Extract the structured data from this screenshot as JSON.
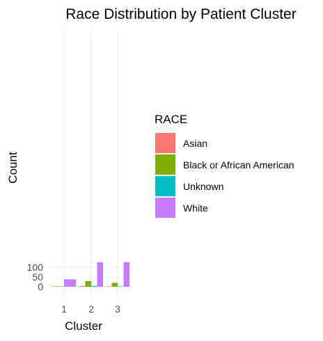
{
  "chart_data": {
    "type": "bar",
    "title": "Race Distribution by Patient Cluster",
    "xlabel": "Cluster",
    "ylabel": "Count",
    "categories": [
      "1",
      "2",
      "3"
    ],
    "ylim": [
      0,
      130
    ],
    "yticks": [
      0,
      50,
      100
    ],
    "grid": true,
    "legend": {
      "title": "RACE",
      "position": "right"
    },
    "series": [
      {
        "name": "Asian",
        "color": "#F8766D",
        "values": [
          0,
          4,
          2
        ]
      },
      {
        "name": "Black or African American",
        "color": "#7CAE00",
        "values": [
          2,
          29,
          20
        ]
      },
      {
        "name": "Unknown",
        "color": "#00BFC4",
        "values": [
          0,
          4,
          2
        ]
      },
      {
        "name": "White",
        "color": "#C77CFF",
        "values": [
          38,
          126,
          126
        ]
      }
    ]
  }
}
